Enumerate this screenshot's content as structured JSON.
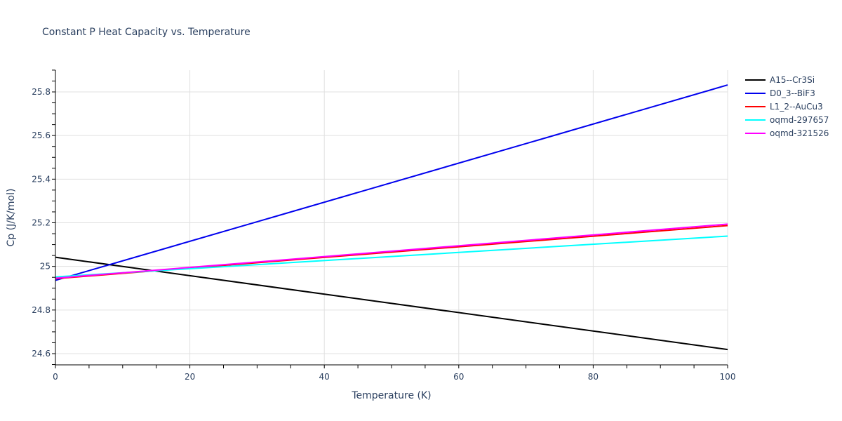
{
  "chart_data": {
    "type": "line",
    "title": "Constant P Heat Capacity vs. Temperature",
    "xlabel": "Temperature (K)",
    "ylabel": "Cp (J/K/mol)",
    "xlim": [
      0,
      100
    ],
    "ylim": [
      24.55,
      25.9
    ],
    "x_ticks": [
      0,
      20,
      40,
      60,
      80,
      100
    ],
    "x_tick_labels": [
      "0",
      "20",
      "40",
      "60",
      "80",
      "100"
    ],
    "y_ticks": [
      24.6,
      24.8,
      25.0,
      25.2,
      25.4,
      25.6,
      25.8
    ],
    "y_tick_labels": [
      "24.6",
      "24.8",
      "25",
      "25.2",
      "25.4",
      "25.6",
      "25.8"
    ],
    "grid": true,
    "legend_position": "right",
    "x": [
      0,
      100
    ],
    "series": [
      {
        "name": "A15--Cr3Si",
        "color": "#000000",
        "values": [
          25.042,
          24.619
        ]
      },
      {
        "name": "D0_3--BiF3",
        "color": "#0000ee",
        "values": [
          24.936,
          25.832
        ]
      },
      {
        "name": "L1_2--AuCu3",
        "color": "#ff0000",
        "values": [
          24.944,
          25.187
        ]
      },
      {
        "name": "oqmd-297657",
        "color": "#00ffff",
        "values": [
          24.952,
          25.139
        ]
      },
      {
        "name": "oqmd-321526",
        "color": "#ff00ff",
        "values": [
          24.946,
          25.194
        ]
      }
    ]
  }
}
